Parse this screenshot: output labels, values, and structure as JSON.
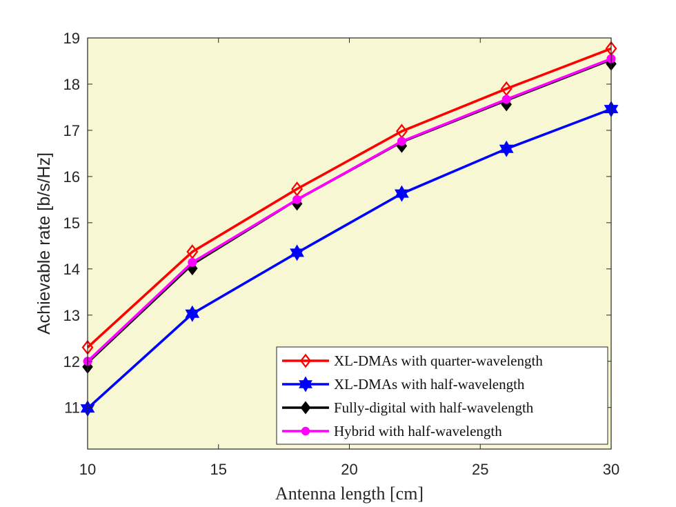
{
  "chart_data": {
    "type": "line",
    "title": "",
    "xlabel": "Antenna length [cm]",
    "ylabel": "Achievable rate [b/s/Hz]",
    "xlim": [
      10,
      30
    ],
    "ylim": [
      10.1,
      19
    ],
    "xticks": [
      10,
      15,
      20,
      25,
      30
    ],
    "yticks": [
      11,
      12,
      13,
      14,
      15,
      16,
      17,
      18,
      19
    ],
    "grid": false,
    "background": "#f7f7d4",
    "legend_position": "bottom-right",
    "x": [
      10,
      14,
      18,
      22,
      26,
      30
    ],
    "series": [
      {
        "name": "XL-DMAs with quarter-wavelength",
        "color": "#ff0000",
        "marker": "diamond-open",
        "values": [
          12.3,
          14.37,
          15.73,
          16.98,
          17.9,
          18.77
        ]
      },
      {
        "name": "XL-DMAs with half-wavelength",
        "color": "#0000ff",
        "marker": "hexagram",
        "values": [
          10.98,
          13.03,
          14.35,
          15.63,
          16.6,
          17.46
        ]
      },
      {
        "name": "Fully-digital with half-wavelength",
        "color": "#000000",
        "marker": "diamond-black",
        "values": [
          11.97,
          14.1,
          15.5,
          16.75,
          17.65,
          18.53
        ]
      },
      {
        "name": "Hybrid with half-wavelength",
        "color": "#ff00ff",
        "marker": "circle",
        "values": [
          12.0,
          14.14,
          15.5,
          16.76,
          17.67,
          18.55
        ]
      }
    ]
  }
}
